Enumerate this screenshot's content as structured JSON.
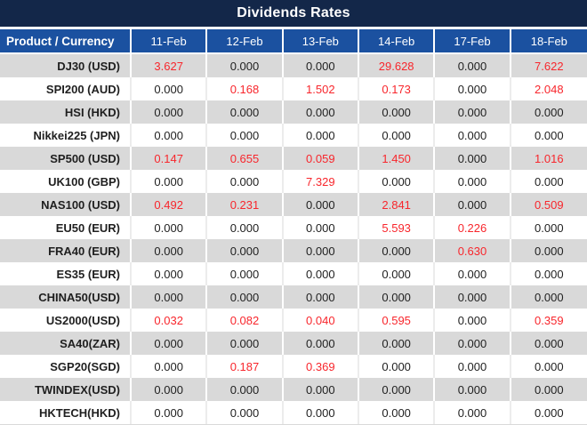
{
  "title": "Dividends Rates",
  "colors": {
    "title_bg": "#132749",
    "header_bg": "#1B51A0",
    "alt_row_bg": "#D9D9D9",
    "plain_row_bg": "#FFFFFF",
    "nonzero_value": "#F8262C",
    "zero_value": "#1F1F1F",
    "header_text": "#FFFFFF"
  },
  "chart_data": {
    "type": "table",
    "title": "Dividends Rates",
    "columns": [
      "Product / Currency",
      "11-Feb",
      "12-Feb",
      "13-Feb",
      "14-Feb",
      "17-Feb",
      "18-Feb"
    ],
    "rows": [
      {
        "product": "DJ30 (USD)",
        "values": [
          "3.627",
          "0.000",
          "0.000",
          "29.628",
          "0.000",
          "7.622"
        ]
      },
      {
        "product": "SPI200 (AUD)",
        "values": [
          "0.000",
          "0.168",
          "1.502",
          "0.173",
          "0.000",
          "2.048"
        ]
      },
      {
        "product": "HSI (HKD)",
        "values": [
          "0.000",
          "0.000",
          "0.000",
          "0.000",
          "0.000",
          "0.000"
        ]
      },
      {
        "product": "Nikkei225 (JPN)",
        "values": [
          "0.000",
          "0.000",
          "0.000",
          "0.000",
          "0.000",
          "0.000"
        ]
      },
      {
        "product": "SP500 (USD)",
        "values": [
          "0.147",
          "0.655",
          "0.059",
          "1.450",
          "0.000",
          "1.016"
        ]
      },
      {
        "product": "UK100 (GBP)",
        "values": [
          "0.000",
          "0.000",
          "7.329",
          "0.000",
          "0.000",
          "0.000"
        ]
      },
      {
        "product": "NAS100 (USD)",
        "values": [
          "0.492",
          "0.231",
          "0.000",
          "2.841",
          "0.000",
          "0.509"
        ]
      },
      {
        "product": "EU50 (EUR)",
        "values": [
          "0.000",
          "0.000",
          "0.000",
          "5.593",
          "0.226",
          "0.000"
        ]
      },
      {
        "product": "FRA40 (EUR)",
        "values": [
          "0.000",
          "0.000",
          "0.000",
          "0.000",
          "0.630",
          "0.000"
        ]
      },
      {
        "product": "ES35 (EUR)",
        "values": [
          "0.000",
          "0.000",
          "0.000",
          "0.000",
          "0.000",
          "0.000"
        ]
      },
      {
        "product": "CHINA50(USD)",
        "values": [
          "0.000",
          "0.000",
          "0.000",
          "0.000",
          "0.000",
          "0.000"
        ]
      },
      {
        "product": "US2000(USD)",
        "values": [
          "0.032",
          "0.082",
          "0.040",
          "0.595",
          "0.000",
          "0.359"
        ]
      },
      {
        "product": "SA40(ZAR)",
        "values": [
          "0.000",
          "0.000",
          "0.000",
          "0.000",
          "0.000",
          "0.000"
        ]
      },
      {
        "product": "SGP20(SGD)",
        "values": [
          "0.000",
          "0.187",
          "0.369",
          "0.000",
          "0.000",
          "0.000"
        ]
      },
      {
        "product": "TWINDEX(USD)",
        "values": [
          "0.000",
          "0.000",
          "0.000",
          "0.000",
          "0.000",
          "0.000"
        ]
      },
      {
        "product": "HKTECH(HKD)",
        "values": [
          "0.000",
          "0.000",
          "0.000",
          "0.000",
          "0.000",
          "0.000"
        ]
      }
    ]
  }
}
